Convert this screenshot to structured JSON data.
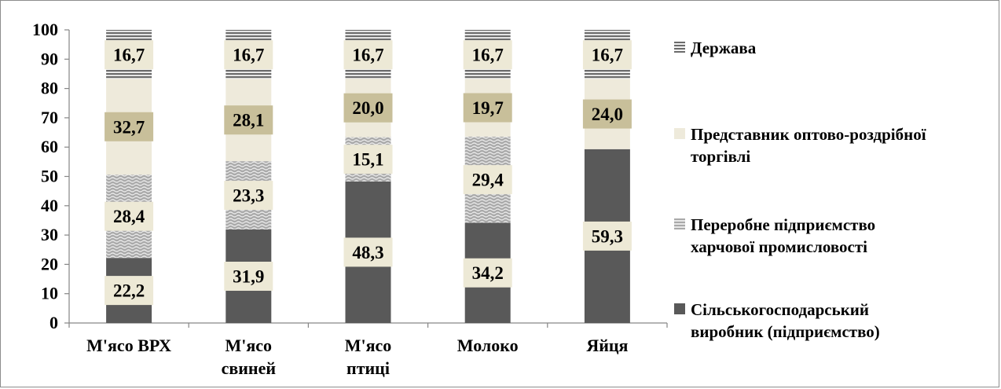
{
  "chart_data": {
    "type": "bar",
    "stacked": true,
    "categories": [
      "М'ясо ВРХ",
      "М'ясо свиней",
      "М'ясо птиці",
      "Молоко",
      "Яйця"
    ],
    "category_lines": [
      [
        "М'ясо ВРХ"
      ],
      [
        "М'ясо",
        "свиней"
      ],
      [
        "М'ясо",
        "птиці"
      ],
      [
        "Молоко"
      ],
      [
        "Яйця"
      ]
    ],
    "series": [
      {
        "name": "Сільськогосподарський виробник (підприємство)",
        "values": [
          22.2,
          31.9,
          48.3,
          34.2,
          59.3
        ],
        "color": "#595959",
        "pattern": "solid",
        "labels": [
          "22,2",
          "31,9",
          "48,3",
          "34,2",
          "59,3"
        ]
      },
      {
        "name": "Переробне підприємство харчової промисловості",
        "values": [
          28.4,
          23.3,
          15.1,
          29.4,
          0
        ],
        "color": "#a6a6a6",
        "pattern": "wave",
        "labels": [
          "28,4",
          "23,3",
          "15,1",
          "29,4",
          ""
        ]
      },
      {
        "name": "Представник оптово-роздрібної торгівлі",
        "values": [
          32.7,
          28.1,
          20.0,
          19.7,
          24.0
        ],
        "color": "#eeeadb",
        "pattern": "solid",
        "labels": [
          "32,7",
          "28,1",
          "20,0",
          "19,7",
          "24,0"
        ]
      },
      {
        "name": "Держава",
        "values": [
          16.7,
          16.7,
          16.7,
          16.7,
          16.7
        ],
        "color": "#737373",
        "pattern": "horizontal",
        "labels": [
          "16,7",
          "16,7",
          "16,7",
          "16,7",
          "16,7"
        ]
      }
    ],
    "legend_order": [
      3,
      2,
      1,
      0
    ],
    "legend_lines": [
      [
        "Держава"
      ],
      [
        "Представник оптово-роздрібної",
        "торгівлі"
      ],
      [
        "Переробне підприємство",
        "харчової промисловості"
      ],
      [
        "Сільськогосподарський",
        "виробник (підприємство)"
      ]
    ],
    "ylim": [
      0,
      100
    ],
    "yticks": [
      0,
      10,
      20,
      30,
      40,
      50,
      60,
      70,
      80,
      90,
      100
    ],
    "legend_position": "right",
    "grid": false,
    "label_box_colors": {
      "light": "#ede9d6",
      "dark": "#c8bf9a"
    }
  }
}
